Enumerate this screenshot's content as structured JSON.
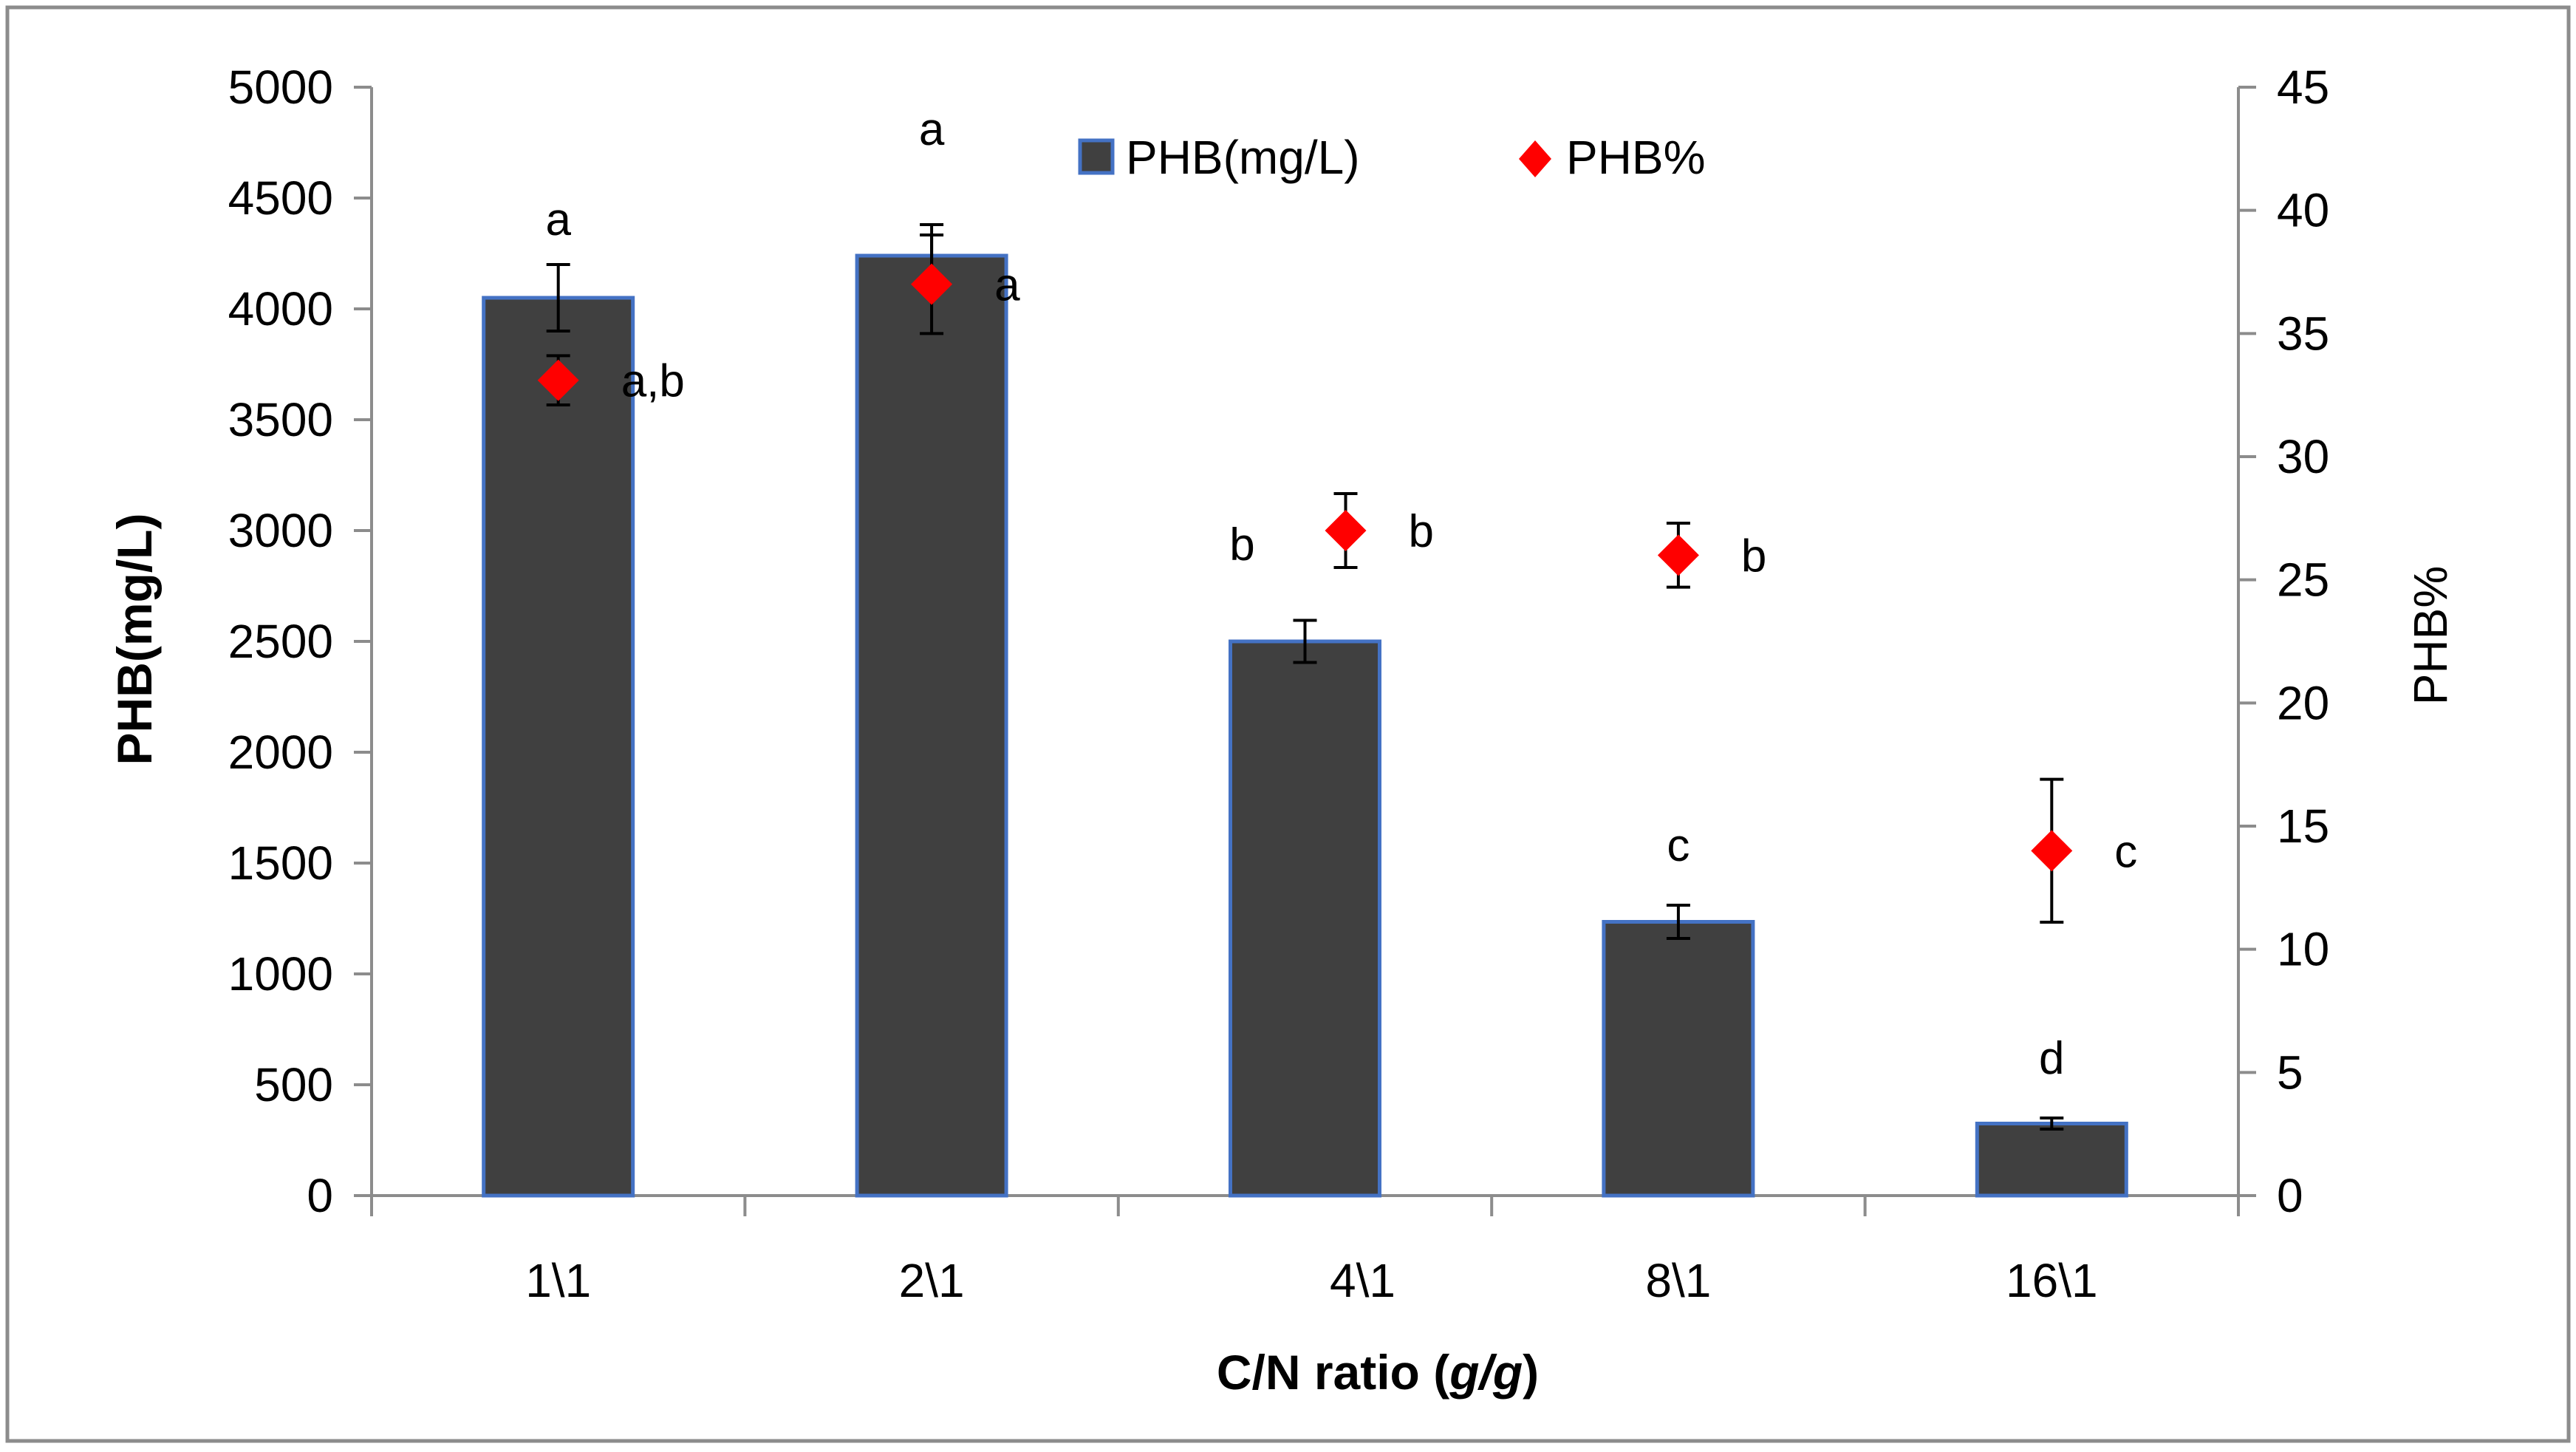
{
  "chart_data": {
    "type": "bar",
    "categories": [
      "1\\1",
      "2\\1",
      "4\\1",
      "8\\1",
      "16\\1"
    ],
    "xlabel": "C/N ratio (g/g)",
    "xlabel_parts": {
      "main": "C/N ratio (",
      "italic": "g/g",
      "end": ")"
    },
    "ylabel": "PHB(mg/L)",
    "y2label": "PHB%",
    "ylim": [
      0,
      5000
    ],
    "y_ticks": [
      "0",
      "500",
      "1000",
      "1500",
      "2000",
      "2500",
      "3000",
      "3500",
      "4000",
      "4500",
      "5000"
    ],
    "y2lim": [
      0,
      45
    ],
    "y2_ticks": [
      "0",
      "5",
      "10",
      "15",
      "20",
      "25",
      "30",
      "35",
      "40",
      "45"
    ],
    "legend_position": "top-center",
    "series": [
      {
        "name": "PHB(mg/L)",
        "kind": "bar",
        "axis": "left",
        "color": "#404040",
        "edge_color": "#4472C4",
        "values": [
          4050,
          4240,
          2500,
          1235,
          325
        ],
        "errors": [
          150,
          140,
          95,
          75,
          25
        ],
        "labels": [
          "a",
          "a",
          "b",
          "c",
          "d"
        ]
      },
      {
        "name": "PHB%",
        "kind": "scatter",
        "axis": "right",
        "color": "#FF0000",
        "marker": "diamond",
        "values": [
          33.1,
          37.0,
          27.0,
          26.0,
          14.0
        ],
        "errors": [
          1.0,
          2.0,
          1.5,
          1.3,
          2.9
        ],
        "labels": [
          "a,b",
          "a",
          "b",
          "b",
          "c"
        ]
      }
    ]
  }
}
